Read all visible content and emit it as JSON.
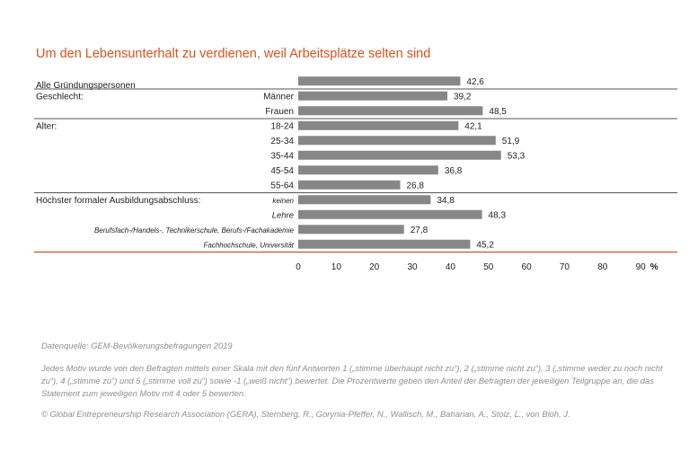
{
  "title": "Um den Lebensunterhalt zu verdienen, weil Arbeitsplätze selten sind",
  "chart_data": {
    "type": "bar",
    "orientation": "horizontal",
    "unit": "%",
    "xlim": [
      0,
      90
    ],
    "xticks": [
      0,
      10,
      20,
      30,
      40,
      50,
      60,
      70,
      80,
      90
    ],
    "bar_color": "#878787",
    "accent_color": "#d4531f",
    "groups": [
      {
        "label": "",
        "rows": [
          {
            "label": "Alle Gründungspersonen",
            "value": 42.6,
            "value_label": "42,6",
            "style": "left"
          }
        ]
      },
      {
        "label": "Geschlecht:",
        "rows": [
          {
            "label": "Männer",
            "value": 39.2,
            "value_label": "39,2",
            "style": "normal"
          },
          {
            "label": "Frauen",
            "value": 48.5,
            "value_label": "48,5",
            "style": "normal"
          }
        ]
      },
      {
        "label": "Alter:",
        "rows": [
          {
            "label": "18-24",
            "value": 42.1,
            "value_label": "42,1",
            "style": "normal"
          },
          {
            "label": "25-34",
            "value": 51.9,
            "value_label": "51,9",
            "style": "normal"
          },
          {
            "label": "35-44",
            "value": 53.3,
            "value_label": "53,3",
            "style": "normal"
          },
          {
            "label": "45-54",
            "value": 36.8,
            "value_label": "36,8",
            "style": "normal"
          },
          {
            "label": "55-64",
            "value": 26.8,
            "value_label": "26,8",
            "style": "normal"
          }
        ]
      },
      {
        "label": "Höchster formaler Ausbildungsabschluss:",
        "rows": [
          {
            "label": "keinen",
            "value": 34.8,
            "value_label": "34,8",
            "style": "italic-small"
          },
          {
            "label": "Lehre",
            "value": 48.3,
            "value_label": "48,3",
            "style": "italic"
          },
          {
            "label": "Berufsfach-/Handels-, Technikerschule, Berufs-/Fachakademie",
            "value": 27.8,
            "value_label": "27,8",
            "style": "italic-small"
          },
          {
            "label": "Fachhochschule, Universität",
            "value": 45.2,
            "value_label": "45,2",
            "style": "italic-small"
          }
        ]
      }
    ]
  },
  "notes": {
    "source": "Datenquelle: GEM-Bevölkerungsbefragungen 2019",
    "description": "Jedes Motiv wurde von den Befragten mittels einer Skala mit den fünf Antworten 1 („stimme überhaupt nicht zu“), 2 („stimme nicht zu“), 3 („stimme weder zu noch nicht zu“), 4 („stimme zu“) und 5 („stimme voll zu“) sowie -1 („weiß nicht“) bewertet. Die Prozentwerte geben den Anteil der Befragten der jeweiligen Teilgruppe an, die das Statement zum jeweiligen Motiv mit 4 oder 5 bewerten.",
    "copyright": "© Global Entrepreneurship Research Association (GERA), Sternberg, R., Gorynia-Pfeffer, N., Wallisch, M., Baharian, A., Stolz, L., von Bloh, J."
  }
}
